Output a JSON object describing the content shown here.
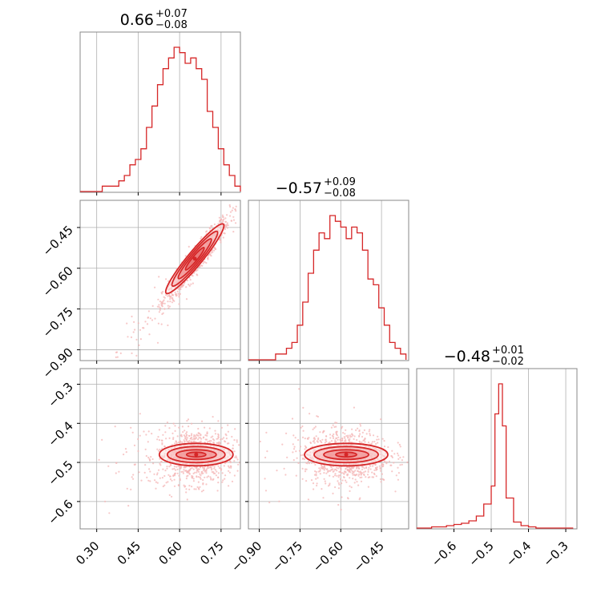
{
  "chart_data": [
    {
      "type": "histogram",
      "panel": "1D marginal, parameter 1",
      "title": {
        "median": "0.66",
        "plus": "+0.07",
        "minus": "−0.08"
      },
      "xlim": [
        0.24,
        0.82
      ],
      "grid": true,
      "bins": [
        0.24,
        0.26,
        0.28,
        0.3,
        0.32,
        0.34,
        0.36,
        0.38,
        0.4,
        0.42,
        0.44,
        0.46,
        0.48,
        0.5,
        0.52,
        0.54,
        0.56,
        0.58,
        0.6,
        0.62,
        0.64,
        0.66,
        0.68,
        0.7,
        0.72,
        0.74,
        0.76,
        0.78,
        0.8,
        0.82
      ],
      "counts": [
        0,
        0,
        0,
        0,
        1,
        1,
        1,
        2,
        3,
        5,
        6,
        8,
        12,
        16,
        20,
        23,
        25,
        27,
        26,
        24,
        25,
        23,
        21,
        15,
        12,
        8,
        5,
        3,
        1
      ]
    },
    {
      "type": "scatter",
      "panel": "2D, parameter 1 vs parameter 2",
      "xlim": [
        0.24,
        0.82
      ],
      "ylim": [
        -0.94,
        -0.35
      ],
      "yticks": [
        "−0.45",
        "−0.60",
        "−0.75",
        "−0.90"
      ],
      "contour_levels": 4,
      "trend": {
        "x": [
          0.52,
          0.78
        ],
        "y": [
          -0.72,
          -0.4
        ]
      }
    },
    {
      "type": "histogram",
      "panel": "1D marginal, parameter 2",
      "title": {
        "median": "−0.57",
        "plus": "+0.09",
        "minus": "−0.08"
      },
      "xlim": [
        -0.94,
        -0.35
      ],
      "grid": true,
      "bins": [
        -0.94,
        -0.92,
        -0.9,
        -0.88,
        -0.86,
        -0.84,
        -0.82,
        -0.8,
        -0.78,
        -0.76,
        -0.74,
        -0.72,
        -0.7,
        -0.68,
        -0.66,
        -0.64,
        -0.62,
        -0.6,
        -0.58,
        -0.56,
        -0.54,
        -0.52,
        -0.5,
        -0.48,
        -0.46,
        -0.44,
        -0.42,
        -0.4,
        -0.38,
        -0.36
      ],
      "counts": [
        0,
        0,
        0,
        0,
        0,
        1,
        1,
        2,
        3,
        6,
        10,
        15,
        19,
        22,
        21,
        25,
        24,
        23,
        21,
        23,
        22,
        19,
        14,
        13,
        9,
        6,
        3,
        2,
        1
      ]
    },
    {
      "type": "scatter",
      "panel": "2D, parameter 1 vs parameter 3",
      "xlim": [
        0.24,
        0.82
      ],
      "ylim": [
        -0.67,
        -0.26
      ],
      "yticks": [
        "−0.3",
        "−0.4",
        "−0.5",
        "−0.6"
      ],
      "xticks": [
        "0.30",
        "0.45",
        "0.60",
        "0.75"
      ],
      "contour_levels": 4,
      "center": {
        "x": 0.66,
        "y": -0.48
      }
    },
    {
      "type": "scatter",
      "panel": "2D, parameter 2 vs parameter 3",
      "xlim": [
        -0.94,
        -0.35
      ],
      "ylim": [
        -0.67,
        -0.26
      ],
      "xticks": [
        "−0.90",
        "−0.75",
        "−0.60",
        "−0.45"
      ],
      "contour_levels": 4,
      "center": {
        "x": -0.58,
        "y": -0.48
      }
    },
    {
      "type": "histogram",
      "panel": "1D marginal, parameter 3",
      "title": {
        "median": "−0.48",
        "plus": "+0.01",
        "minus": "−0.02"
      },
      "xlim": [
        -0.7,
        -0.27
      ],
      "grid": true,
      "xticks": [
        "−0.6",
        "−0.5",
        "−0.4",
        "−0.3"
      ],
      "bins": [
        -0.7,
        -0.68,
        -0.66,
        -0.64,
        -0.62,
        -0.6,
        -0.58,
        -0.56,
        -0.54,
        -0.52,
        -0.5,
        -0.49,
        -0.48,
        -0.47,
        -0.46,
        -0.44,
        -0.42,
        -0.4,
        -0.38,
        -0.36,
        -0.34,
        -0.32,
        -0.3,
        -0.28
      ],
      "counts": [
        0,
        0,
        1,
        1,
        2,
        3,
        4,
        6,
        10,
        20,
        35,
        95,
        120,
        85,
        25,
        5,
        2,
        1,
        0,
        0,
        0,
        0,
        0
      ]
    }
  ],
  "colors": {
    "main": "#d62728",
    "light": "#f4b6b6",
    "grid": "#b0b0b0",
    "frame": "#888888"
  }
}
